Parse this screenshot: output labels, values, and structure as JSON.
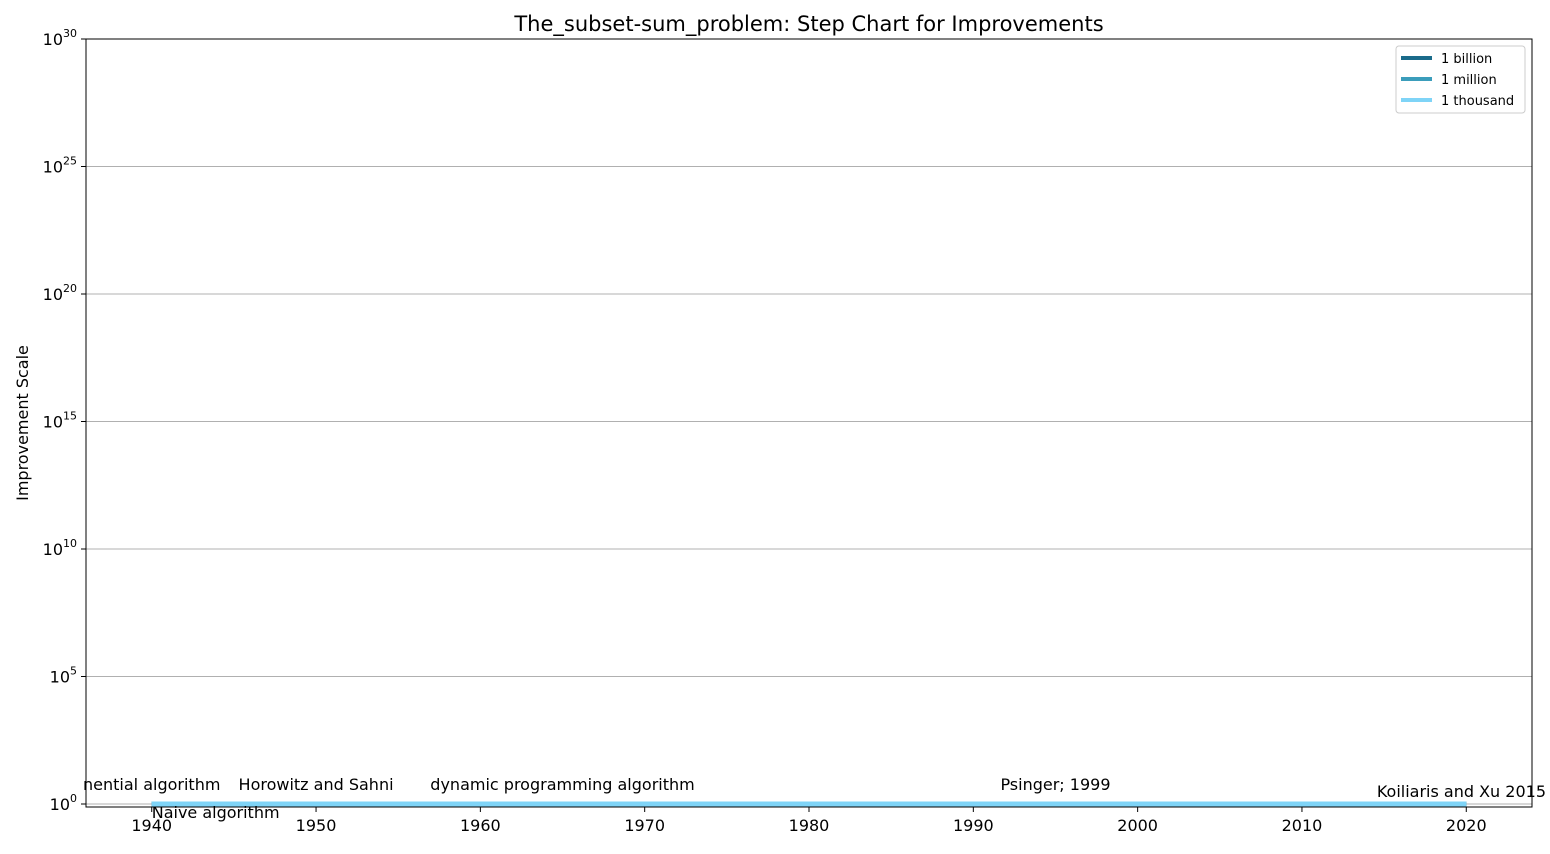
{
  "chart_data": {
    "type": "line",
    "title": "The_subset-sum_problem: Step Chart for Improvements",
    "xlabel": "",
    "ylabel": "Improvement Scale",
    "xlim": [
      1936,
      2024
    ],
    "ylim_log10": [
      0,
      30
    ],
    "yscale": "log",
    "grid": "horizontal",
    "legend_placement": "top-right",
    "x_ticks": [
      1940,
      1950,
      1960,
      1970,
      1980,
      1990,
      2000,
      2010,
      2020
    ],
    "y_ticks": [
      {
        "base": "10",
        "exp": "0",
        "log10": 0
      },
      {
        "base": "10",
        "exp": "5",
        "log10": 5
      },
      {
        "base": "10",
        "exp": "10",
        "log10": 10
      },
      {
        "base": "10",
        "exp": "15",
        "log10": 15
      },
      {
        "base": "10",
        "exp": "20",
        "log10": 20
      },
      {
        "base": "10",
        "exp": "25",
        "log10": 25
      },
      {
        "base": "10",
        "exp": "30",
        "log10": 30
      }
    ],
    "series": [
      {
        "name": "1 billion",
        "color": "#1a6b8a",
        "x": [
          1940,
          2020
        ],
        "y": [
          1,
          1
        ]
      },
      {
        "name": "1 million",
        "color": "#3b9dbb",
        "x": [
          1940,
          2020
        ],
        "y": [
          1,
          1
        ]
      },
      {
        "name": "1 thousand",
        "color": "#7fd4f7",
        "x": [
          1940,
          2020
        ],
        "y": [
          1,
          1
        ]
      }
    ],
    "annotations": [
      {
        "text": "nential algorithm",
        "x": 1940,
        "position": "above",
        "anchor": "middle"
      },
      {
        "text": "Naive algorithm",
        "x": 1940,
        "position": "below",
        "anchor": "start"
      },
      {
        "text": "Horowitz and Sahni",
        "x": 1950,
        "position": "above",
        "anchor": "middle"
      },
      {
        "text": "dynamic programming algorithm",
        "x": 1965,
        "position": "above",
        "anchor": "middle"
      },
      {
        "text": "Psinger; 1999",
        "x": 1995,
        "position": "above",
        "anchor": "middle"
      },
      {
        "text": "Koiliaris and Xu 2015",
        "x": 2020,
        "position": "above-low",
        "anchor": "middle"
      }
    ]
  }
}
